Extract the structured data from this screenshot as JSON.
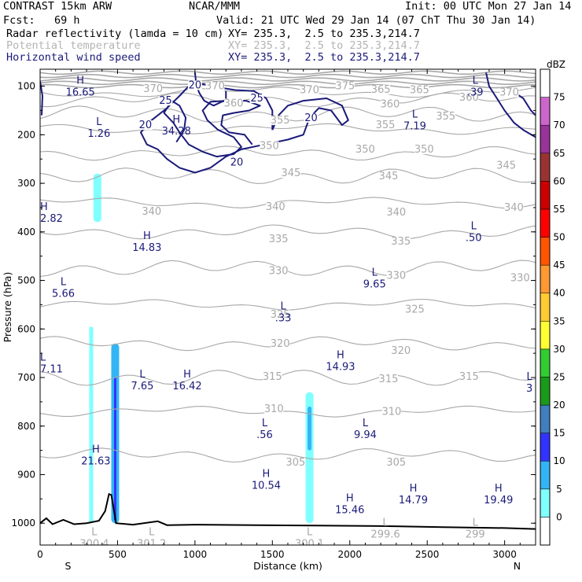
{
  "header": {
    "line1_left": "CONTRAST 15km ARW",
    "line1_mid": "NCAR/MMM",
    "line1_right": "Init: 00 UTC Mon 27 Jan 14",
    "line2_left": "Fcst:   69 h",
    "line2_right": "Valid: 21 UTC Wed 29 Jan 14 (07 ChT Thu 30 Jan 14)",
    "field1_name": "Radar reflectivity (lamda = 10 cm)",
    "field1_xy": "XY= 235.3,  2.5 to 235.3,214.7",
    "field2_name": "Potential temperature",
    "field2_xy": "XY= 235.3,  2.5 to 235.3,214.7",
    "field3_name": "Horizontal wind speed",
    "field3_xy": "XY= 235.3,  2.5 to 235.3,214.7",
    "colors": {
      "black": "#000000",
      "gray": "#a8a8a8",
      "navy": "#1a1a7a"
    }
  },
  "chart_data": {
    "type": "cross-section",
    "xlabel": "Distance (km)",
    "ylabel": "Pressure (hPa)",
    "xlim": [
      0,
      3200
    ],
    "ylim": [
      1045,
      65
    ],
    "x_ticks": [
      0,
      500,
      1000,
      1500,
      2000,
      2500,
      3000
    ],
    "y_ticks": [
      100,
      200,
      300,
      400,
      500,
      600,
      700,
      800,
      900,
      1000
    ],
    "end_labels": {
      "left": "S",
      "right": "N"
    },
    "colorbar": {
      "unit": "dBZ",
      "levels": [
        0,
        5,
        10,
        15,
        20,
        25,
        30,
        35,
        40,
        45,
        50,
        55,
        60,
        65,
        70,
        75
      ],
      "colors": [
        "#ffffff",
        "#80ffff",
        "#33b5f5",
        "#3333ff",
        "#3f7fbf",
        "#1a9a1a",
        "#33cc33",
        "#ffff33",
        "#ffcc33",
        "#ff9933",
        "#ff5500",
        "#ff0000",
        "#cc0000",
        "#993333",
        "#993399",
        "#cc66cc",
        "#ffffff"
      ]
    },
    "theta_isentropes": [
      {
        "label": "370",
        "p": 112
      },
      {
        "label": "365",
        "p": 128
      },
      {
        "label": "360",
        "p": 158
      },
      {
        "label": "355",
        "p": 188
      },
      {
        "label": "350",
        "p": 238
      },
      {
        "label": "345",
        "p": 285
      },
      {
        "label": "340",
        "p": 340
      },
      {
        "label": "335",
        "p": 400
      },
      {
        "label": "330",
        "p": 475
      },
      {
        "label": "325",
        "p": 550
      },
      {
        "label": "320",
        "p": 630
      },
      {
        "label": "315",
        "p": 700
      },
      {
        "label": "310",
        "p": 770
      },
      {
        "label": "305",
        "p": 860
      }
    ],
    "theta_labels": [
      {
        "text": "370",
        "x": 730,
        "p": 110
      },
      {
        "text": "370",
        "x": 1130,
        "p": 105
      },
      {
        "text": "370",
        "x": 1740,
        "p": 113
      },
      {
        "text": "375",
        "x": 1970,
        "p": 105
      },
      {
        "text": "365",
        "x": 2200,
        "p": 112
      },
      {
        "text": "365",
        "x": 2450,
        "p": 113
      },
      {
        "text": "370",
        "x": 3030,
        "p": 118
      },
      {
        "text": "360",
        "x": 2770,
        "p": 128
      },
      {
        "text": "360",
        "x": 1250,
        "p": 140
      },
      {
        "text": "360",
        "x": 2260,
        "p": 142
      },
      {
        "text": "355",
        "x": 2620,
        "p": 167
      },
      {
        "text": "355",
        "x": 1550,
        "p": 175
      },
      {
        "text": "355",
        "x": 2230,
        "p": 185
      },
      {
        "text": "350",
        "x": 1480,
        "p": 228
      },
      {
        "text": "350",
        "x": 2100,
        "p": 235
      },
      {
        "text": "350",
        "x": 2480,
        "p": 235
      },
      {
        "text": "345",
        "x": 3010,
        "p": 268
      },
      {
        "text": "345",
        "x": 1620,
        "p": 284
      },
      {
        "text": "345",
        "x": 2250,
        "p": 290
      },
      {
        "text": "340",
        "x": 3060,
        "p": 355
      },
      {
        "text": "340",
        "x": 720,
        "p": 363
      },
      {
        "text": "340",
        "x": 1520,
        "p": 353
      },
      {
        "text": "340",
        "x": 2300,
        "p": 365
      },
      {
        "text": "335",
        "x": 1540,
        "p": 420
      },
      {
        "text": "335",
        "x": 2330,
        "p": 425
      },
      {
        "text": "330",
        "x": 1540,
        "p": 485
      },
      {
        "text": "330",
        "x": 2300,
        "p": 495
      },
      {
        "text": "330",
        "x": 3100,
        "p": 500
      },
      {
        "text": "325",
        "x": 1550,
        "p": 575
      },
      {
        "text": "325",
        "x": 2420,
        "p": 565
      },
      {
        "text": "320",
        "x": 1550,
        "p": 635
      },
      {
        "text": "320",
        "x": 2330,
        "p": 650
      },
      {
        "text": "315",
        "x": 1500,
        "p": 703
      },
      {
        "text": "315",
        "x": 2250,
        "p": 708
      },
      {
        "text": "315",
        "x": 2770,
        "p": 703
      },
      {
        "text": "310",
        "x": 1510,
        "p": 770
      },
      {
        "text": "310",
        "x": 2270,
        "p": 775
      },
      {
        "text": "305",
        "x": 1650,
        "p": 880
      },
      {
        "text": "305",
        "x": 2300,
        "p": 880
      }
    ],
    "extrema": [
      {
        "type": "H",
        "value": "16.65",
        "x": 260,
        "p": 95,
        "color": "navy"
      },
      {
        "type": "L",
        "value": ".39",
        "x": 2810,
        "p": 95,
        "color": "navy"
      },
      {
        "type": "L",
        "value": "1.26",
        "x": 380,
        "p": 180,
        "color": "navy"
      },
      {
        "type": "H",
        "value": "34.28",
        "x": 880,
        "p": 175,
        "color": "navy"
      },
      {
        "type": "L",
        "value": "7.19",
        "x": 2420,
        "p": 165,
        "color": "navy"
      },
      {
        "type": "H",
        "value": "2.82",
        "x": 0,
        "p": 355,
        "color": "navy"
      },
      {
        "type": "H",
        "value": "14.83",
        "x": 690,
        "p": 415,
        "color": "navy"
      },
      {
        "type": "L",
        "value": ".50",
        "x": 2800,
        "p": 395,
        "color": "navy"
      },
      {
        "type": "L",
        "value": "5.66",
        "x": 150,
        "p": 510,
        "color": "navy"
      },
      {
        "type": "L",
        "value": "9.65",
        "x": 2160,
        "p": 490,
        "color": "navy"
      },
      {
        "type": "L",
        "value": ".33",
        "x": 1570,
        "p": 560,
        "color": "navy"
      },
      {
        "type": "H",
        "value": "14.93",
        "x": 1940,
        "p": 660,
        "color": "navy"
      },
      {
        "type": "L",
        "value": "7.11",
        "x": 0,
        "p": 665,
        "color": "navy"
      },
      {
        "type": "L",
        "value": "7.65",
        "x": 660,
        "p": 700,
        "color": "navy"
      },
      {
        "type": "H",
        "value": "16.42",
        "x": 950,
        "p": 700,
        "color": "navy"
      },
      {
        "type": "L",
        "value": "3",
        "x": 3160,
        "p": 705,
        "color": "navy"
      },
      {
        "type": "L",
        "value": ".56",
        "x": 1450,
        "p": 800,
        "color": "navy"
      },
      {
        "type": "L",
        "value": "9.94",
        "x": 2100,
        "p": 800,
        "color": "navy"
      },
      {
        "type": "H",
        "value": "21.63",
        "x": 360,
        "p": 855,
        "color": "navy"
      },
      {
        "type": "H",
        "value": "10.54",
        "x": 1460,
        "p": 905,
        "color": "navy"
      },
      {
        "type": "H",
        "value": "15.46",
        "x": 2000,
        "p": 955,
        "color": "navy"
      },
      {
        "type": "H",
        "value": "14.79",
        "x": 2410,
        "p": 935,
        "color": "navy"
      },
      {
        "type": "H",
        "value": "19.49",
        "x": 2960,
        "p": 935,
        "color": "navy"
      },
      {
        "type": "L",
        "value": "300.4",
        "x": 350,
        "p": 1025,
        "color": "gray"
      },
      {
        "type": "L",
        "value": "301.2",
        "x": 720,
        "p": 1025,
        "color": "gray"
      },
      {
        "type": "L",
        "value": "300.1",
        "x": 1740,
        "p": 1025,
        "color": "gray"
      },
      {
        "type": "L",
        "value": "299.6",
        "x": 2230,
        "p": 1005,
        "color": "gray"
      },
      {
        "type": "L",
        "value": "299",
        "x": 2810,
        "p": 1005,
        "color": "gray"
      }
    ],
    "wind_contour_labels": [
      {
        "text": "20",
        "x": 1000,
        "p": 103
      },
      {
        "text": "25",
        "x": 810,
        "p": 135
      },
      {
        "text": "25",
        "x": 1400,
        "p": 130
      },
      {
        "text": "20",
        "x": 680,
        "p": 185
      },
      {
        "text": "20",
        "x": 1750,
        "p": 170
      },
      {
        "text": "20",
        "x": 1270,
        "p": 262
      }
    ],
    "reflectivity_cells": [
      {
        "x": 370,
        "p_top": 280,
        "p_bot": 380,
        "dbz": 5
      },
      {
        "x": 330,
        "p_top": 595,
        "p_bot": 1000,
        "dbz": 5
      },
      {
        "x": 485,
        "p_top": 630,
        "p_bot": 1000,
        "dbz": 10
      },
      {
        "x": 485,
        "p_top": 700,
        "p_bot": 995,
        "dbz": 15
      },
      {
        "x": 1740,
        "p_top": 730,
        "p_bot": 1000,
        "dbz": 5
      },
      {
        "x": 1740,
        "p_top": 760,
        "p_bot": 850,
        "dbz": 10
      }
    ],
    "terrain": [
      [
        0,
        1000
      ],
      [
        40,
        990
      ],
      [
        80,
        1002
      ],
      [
        150,
        993
      ],
      [
        220,
        1002
      ],
      [
        300,
        1000
      ],
      [
        380,
        995
      ],
      [
        420,
        975
      ],
      [
        445,
        940
      ],
      [
        460,
        942
      ],
      [
        490,
        1000
      ],
      [
        600,
        1003
      ],
      [
        760,
        996
      ],
      [
        820,
        1004
      ],
      [
        1000,
        1003
      ],
      [
        1400,
        1004
      ],
      [
        1800,
        1005
      ],
      [
        2200,
        1006
      ],
      [
        2600,
        1008
      ],
      [
        3000,
        1010
      ],
      [
        3200,
        1012
      ]
    ]
  }
}
